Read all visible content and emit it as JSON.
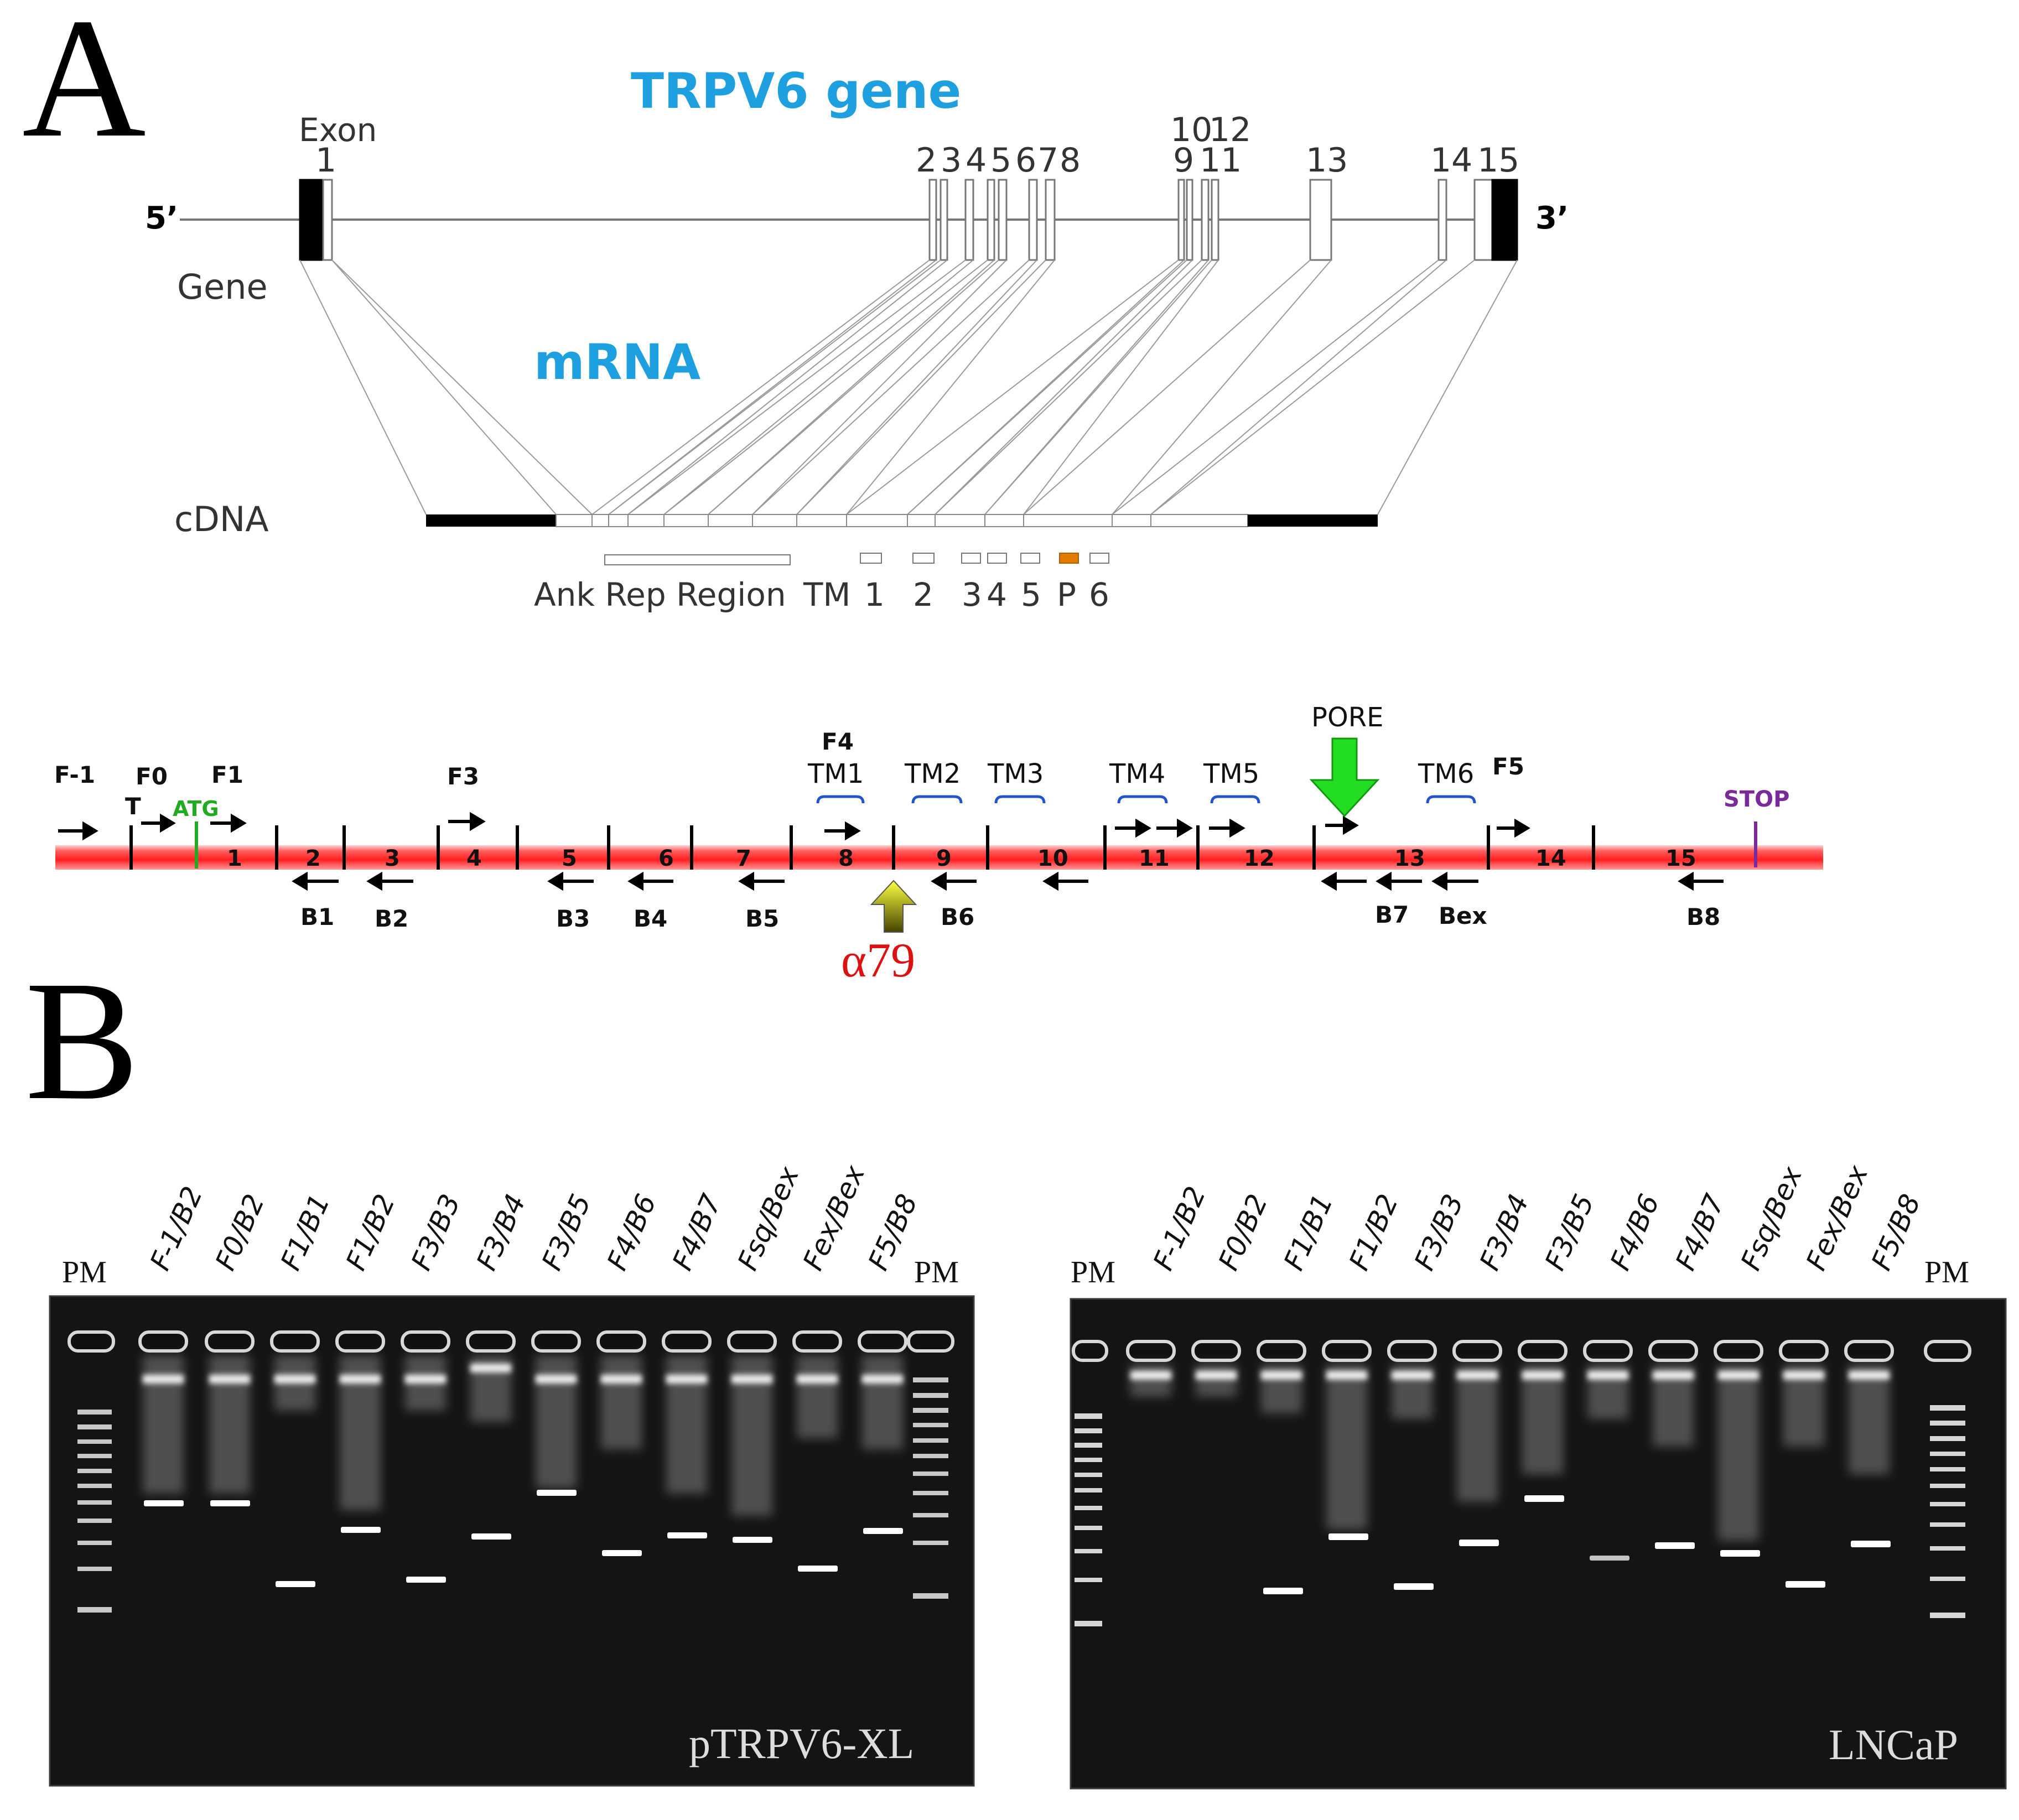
{
  "figure": {
    "panel_a": {
      "label": "A",
      "gene_title": "TRPV6 gene",
      "mrna_title": "mRNA",
      "exon_label": "Exon",
      "five_prime": "5’",
      "three_prime": "3’",
      "gene_row_label": "Gene",
      "cdna_row_label": "cDNA",
      "exon_numbers": [
        "1",
        "2",
        "3",
        "4",
        "5",
        "6",
        "7",
        "8",
        "9",
        "10",
        "11",
        "12",
        "13",
        "14",
        "15"
      ],
      "domain_labels": {
        "ank": "Ank Rep Region",
        "tm": "TM",
        "tm1": "1",
        "tm2": "2",
        "tm3": "3",
        "tm4": "4",
        "tm5": "5",
        "pore": "P",
        "tm6": "6"
      },
      "pore_color": "#e07b00",
      "title_color": "#1e9fe0",
      "transcript": {
        "bar_color": "#ff2a2a",
        "forward_primers": [
          "F-1",
          "F0",
          "T",
          "F1",
          "F3",
          "F4",
          "F5"
        ],
        "reverse_primers": [
          "B1",
          "B2",
          "B3",
          "B4",
          "B5",
          "B6",
          "B7",
          "Bex",
          "B8"
        ],
        "exons": [
          "1",
          "2",
          "3",
          "4",
          "5",
          "6",
          "7",
          "8",
          "9",
          "10",
          "11",
          "12",
          "13",
          "14",
          "15"
        ],
        "atg": "ATG",
        "atg_color": "#22aa22",
        "stop": "STOP",
        "stop_color": "#7a2a9a",
        "pore": "PORE",
        "pore_arrow_color": "#22dd22",
        "tm_segments": [
          "TM1",
          "TM2",
          "TM3",
          "TM4",
          "TM5",
          "TM6"
        ],
        "tm_bracket_color": "#2255cc",
        "antibody": "α79",
        "antibody_color": "#dd1111"
      }
    },
    "panel_b": {
      "label": "B",
      "marker": "PM",
      "lanes": [
        "F-1/B2",
        "F0/B2",
        "F1/B1",
        "F1/B2",
        "F3/B3",
        "F3/B4",
        "F3/B5",
        "F4/B6",
        "F4/B7",
        "Fsq/Bex",
        "Fex/Bex",
        "F5/B8"
      ],
      "gel_left_name": "pTRPV6-XL",
      "gel_right_name": "LNCaP"
    }
  }
}
